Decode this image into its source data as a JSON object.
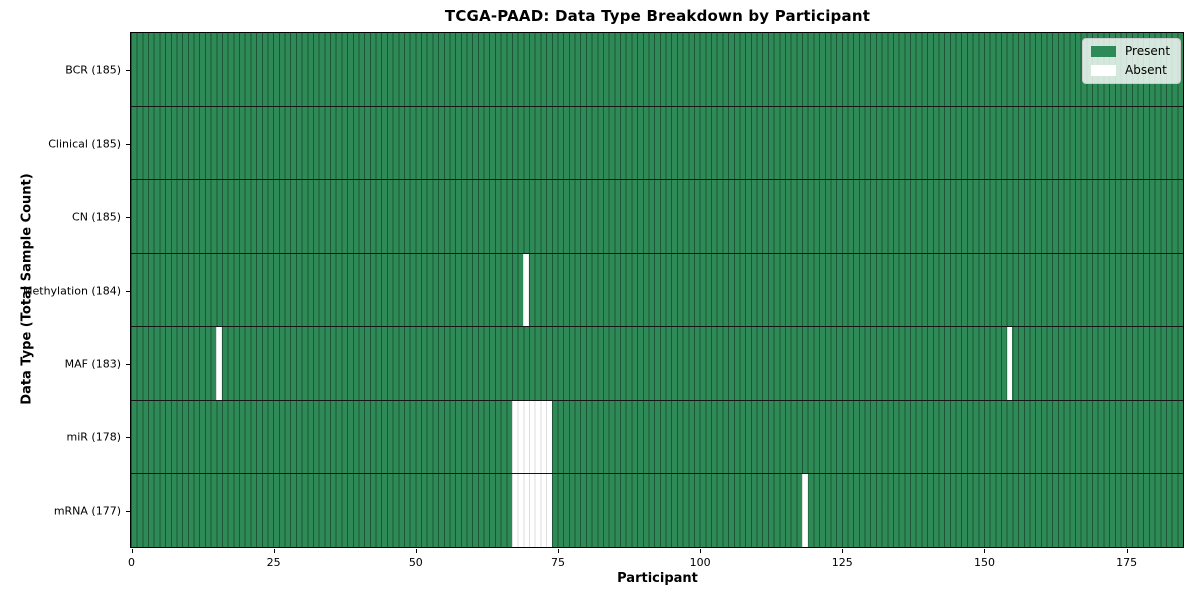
{
  "chart_data": {
    "type": "heatmap",
    "title": "TCGA-PAAD: Data Type Breakdown by Participant",
    "xlabel": "Participant",
    "ylabel": "Data Type (Total Sample Count)",
    "n_participants": 185,
    "x_range": [
      0,
      185
    ],
    "x_ticks": [
      0,
      25,
      50,
      75,
      100,
      125,
      150,
      175
    ],
    "grid": "off",
    "colors": {
      "present": "#2e8b57",
      "absent": "#ffffff",
      "bar_edge_on_present": "rgba(0,0,0,0.38)",
      "bar_edge_on_absent": "rgba(0,0,0,0.13)",
      "row_separator": "#161616"
    },
    "rows": [
      {
        "key": "bcr",
        "label": "BCR (185)",
        "present_count": 185,
        "absent_participants": []
      },
      {
        "key": "clinical",
        "label": "Clinical (185)",
        "present_count": 185,
        "absent_participants": []
      },
      {
        "key": "cn",
        "label": "CN (185)",
        "present_count": 185,
        "absent_participants": []
      },
      {
        "key": "methylation",
        "label": "Methylation (184)",
        "present_count": 184,
        "absent_participants": [
          69
        ]
      },
      {
        "key": "maf",
        "label": "MAF (183)",
        "present_count": 183,
        "absent_participants": [
          15,
          154
        ]
      },
      {
        "key": "mir",
        "label": "miR (178)",
        "present_count": 178,
        "absent_participants": [
          67,
          68,
          69,
          70,
          71,
          72,
          73
        ]
      },
      {
        "key": "mrna",
        "label": "mRNA (177)",
        "present_count": 177,
        "absent_participants": [
          67,
          68,
          69,
          70,
          71,
          72,
          73,
          118
        ]
      }
    ],
    "legend": {
      "position": "upper right",
      "entries": [
        {
          "key": "present",
          "label": "Present",
          "color": "#2e8b57"
        },
        {
          "key": "absent",
          "label": "Absent",
          "color": "#ffffff"
        }
      ]
    }
  }
}
